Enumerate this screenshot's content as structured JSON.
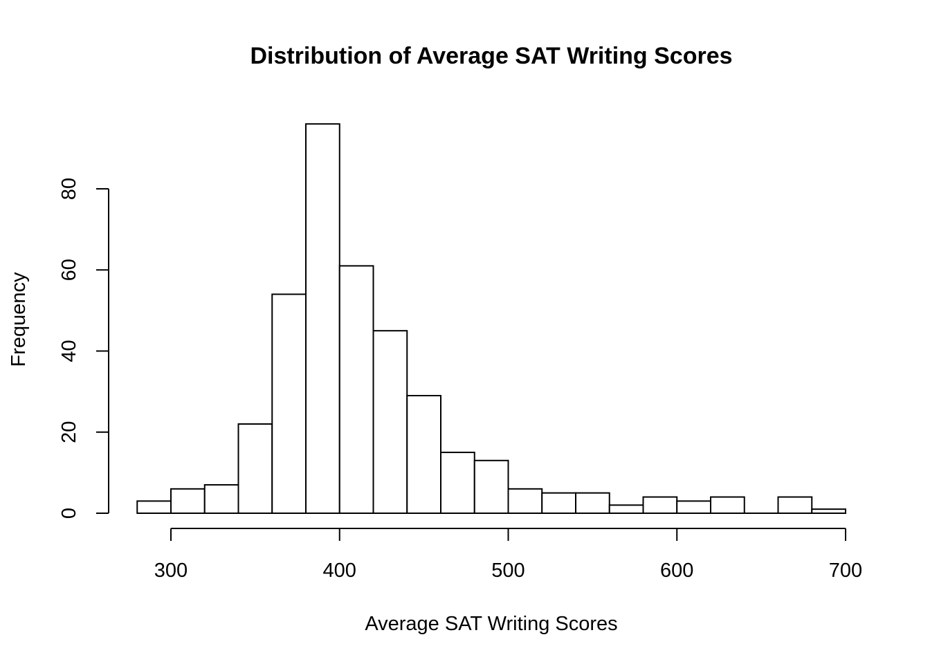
{
  "chart_data": {
    "type": "bar",
    "title": "Distribution of Average SAT Writing Scores",
    "xlabel": "Average SAT Writing Scores",
    "ylabel": "Frequency",
    "bins": [
      {
        "start": 280,
        "end": 300,
        "count": 3
      },
      {
        "start": 300,
        "end": 320,
        "count": 6
      },
      {
        "start": 320,
        "end": 340,
        "count": 7
      },
      {
        "start": 340,
        "end": 360,
        "count": 22
      },
      {
        "start": 360,
        "end": 380,
        "count": 54
      },
      {
        "start": 380,
        "end": 400,
        "count": 96
      },
      {
        "start": 400,
        "end": 420,
        "count": 61
      },
      {
        "start": 420,
        "end": 440,
        "count": 45
      },
      {
        "start": 440,
        "end": 460,
        "count": 29
      },
      {
        "start": 460,
        "end": 480,
        "count": 15
      },
      {
        "start": 480,
        "end": 500,
        "count": 13
      },
      {
        "start": 500,
        "end": 520,
        "count": 6
      },
      {
        "start": 520,
        "end": 540,
        "count": 5
      },
      {
        "start": 540,
        "end": 560,
        "count": 5
      },
      {
        "start": 560,
        "end": 580,
        "count": 2
      },
      {
        "start": 580,
        "end": 600,
        "count": 4
      },
      {
        "start": 600,
        "end": 620,
        "count": 3
      },
      {
        "start": 620,
        "end": 640,
        "count": 4
      },
      {
        "start": 640,
        "end": 660,
        "count": 0
      },
      {
        "start": 660,
        "end": 680,
        "count": 4
      },
      {
        "start": 680,
        "end": 700,
        "count": 1
      }
    ],
    "x_ticks": [
      300,
      400,
      500,
      600,
      700
    ],
    "y_ticks": [
      0,
      20,
      40,
      60,
      80
    ],
    "xlim": [
      280,
      700
    ],
    "ylim": [
      0,
      96
    ],
    "grid": false,
    "legend": "none",
    "colors": {
      "bar_fill": "#ffffff",
      "bar_stroke": "#000000"
    }
  }
}
